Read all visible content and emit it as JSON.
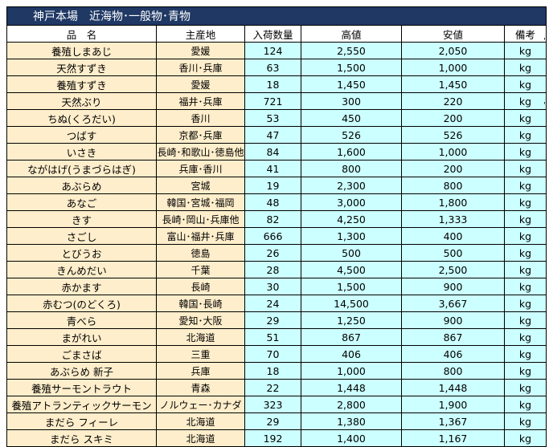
{
  "title": "神戸本場　近海物･一般物･青物",
  "headers": [
    "品　名",
    "主産地",
    "入荷数量",
    "高値",
    "安値",
    "備考"
  ],
  "rows": [
    [
      "養殖しまあじ",
      "愛媛",
      "124",
      "2,550",
      "2,050",
      "kg"
    ],
    [
      "天然すずき",
      "香川･兵庫",
      "63",
      "1,500",
      "1,000",
      "kg"
    ],
    [
      "養殖すずき",
      "愛媛",
      "18",
      "1,450",
      "1,450",
      "kg"
    ],
    [
      "天然ぶり",
      "福井･兵庫",
      "721",
      "300",
      "220",
      "kg"
    ],
    [
      "ちぬ(くろだい)",
      "香川",
      "53",
      "450",
      "200",
      "kg"
    ],
    [
      "つばす",
      "京都･兵庫",
      "47",
      "526",
      "526",
      "kg"
    ],
    [
      "いさき",
      "長崎･和歌山･徳島他",
      "84",
      "1,600",
      "1,000",
      "kg"
    ],
    [
      "ながはげ(うまづらはぎ)",
      "兵庫･香川",
      "41",
      "800",
      "200",
      "kg"
    ],
    [
      "あぶらめ",
      "宮城",
      "19",
      "2,300",
      "800",
      "kg"
    ],
    [
      "あなご",
      "韓国･宮城･福岡",
      "48",
      "3,000",
      "1,800",
      "kg"
    ],
    [
      "きす",
      "長崎･岡山･兵庫他",
      "82",
      "4,250",
      "1,333",
      "kg"
    ],
    [
      "さごし",
      "富山･福井･兵庫",
      "666",
      "1,300",
      "400",
      "kg"
    ],
    [
      "とびうお",
      "徳島",
      "26",
      "500",
      "500",
      "kg"
    ],
    [
      "きんめだい",
      "千葉",
      "28",
      "4,500",
      "2,500",
      "kg"
    ],
    [
      "赤かます",
      "長崎",
      "30",
      "1,500",
      "900",
      "kg"
    ],
    [
      "赤むつ(のどくろ)",
      "韓国･長崎",
      "24",
      "14,500",
      "3,667",
      "kg"
    ],
    [
      "青べら",
      "愛知･大阪",
      "29",
      "1,250",
      "900",
      "kg"
    ],
    [
      "まがれい",
      "北海道",
      "51",
      "867",
      "867",
      "kg"
    ],
    [
      "ごまさば",
      "三重",
      "70",
      "406",
      "406",
      "kg"
    ],
    [
      "あぶらめ 新子",
      "兵庫",
      "18",
      "1,000",
      "800",
      "kg"
    ],
    [
      "養殖サーモントラウト",
      "青森",
      "22",
      "1,448",
      "1,448",
      "kg"
    ],
    [
      "養殖アトランティックサーモン",
      "ノルウェー･カナダ",
      "323",
      "2,800",
      "1,900",
      "kg"
    ],
    [
      "まだら フィーレ",
      "北海道",
      "29",
      "1,380",
      "1,367",
      "kg"
    ],
    [
      "まだら スキミ",
      "北海道",
      "192",
      "1,400",
      "1,167",
      "kg"
    ]
  ],
  "side_marks": [
    "'",
    "'"
  ]
}
